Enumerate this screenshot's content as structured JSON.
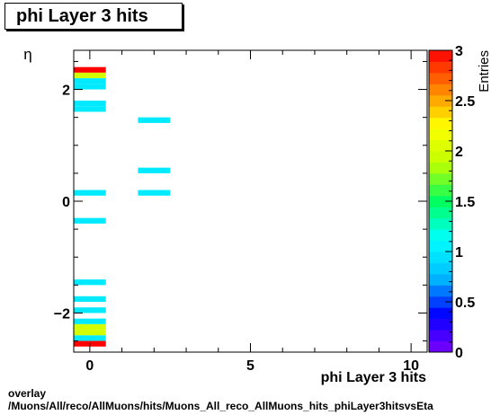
{
  "chart_data": {
    "type": "heatmap",
    "title": "phi Layer 3 hits",
    "xlabel": "phi Layer 3 hits",
    "ylabel": "η",
    "zlabel": "Entries",
    "xlim": [
      -0.5,
      10.5
    ],
    "ylim": [
      -2.7,
      2.7
    ],
    "zlim": [
      0,
      3
    ],
    "x_ticks": [
      "0",
      "5",
      "10"
    ],
    "y_ticks": [
      "−2",
      "0",
      "2"
    ],
    "z_ticks": [
      "0",
      "0.5",
      "1",
      "1.5",
      "2",
      "2.5",
      "3"
    ],
    "bin_width_x": 1,
    "bin_height_y": 0.1,
    "cells": [
      {
        "x": 0,
        "y": 2.35,
        "v": 3
      },
      {
        "x": 0,
        "y": 2.25,
        "v": 2
      },
      {
        "x": 0,
        "y": 2.15,
        "v": 1
      },
      {
        "x": 0,
        "y": 2.05,
        "v": 1
      },
      {
        "x": 0,
        "y": 1.75,
        "v": 1
      },
      {
        "x": 0,
        "y": 1.65,
        "v": 1
      },
      {
        "x": 0,
        "y": 0.15,
        "v": 1
      },
      {
        "x": 0,
        "y": -0.35,
        "v": 1
      },
      {
        "x": 0,
        "y": -1.45,
        "v": 1
      },
      {
        "x": 0,
        "y": -1.75,
        "v": 1
      },
      {
        "x": 0,
        "y": -1.95,
        "v": 1
      },
      {
        "x": 0,
        "y": -2.15,
        "v": 1
      },
      {
        "x": 0,
        "y": -2.25,
        "v": 2
      },
      {
        "x": 0,
        "y": -2.35,
        "v": 2
      },
      {
        "x": 0,
        "y": -2.45,
        "v": 1
      },
      {
        "x": 0,
        "y": -2.55,
        "v": 3
      },
      {
        "x": 2,
        "y": 1.45,
        "v": 1
      },
      {
        "x": 2,
        "y": 0.55,
        "v": 1
      },
      {
        "x": 2,
        "y": 0.15,
        "v": 1
      }
    ]
  },
  "footer": {
    "line1": "overlay",
    "line2": "/Muons/All/reco/AllMuons/hits/Muons_All_reco_AllMuons_hits_phiLayer3hitsvsEta"
  },
  "colors": {
    "palette_stops": [
      "#7f00ff",
      "#0000ff",
      "#00bfff",
      "#00ffff",
      "#00ff60",
      "#bfff00",
      "#ffff00",
      "#ff8000",
      "#ff0000"
    ]
  }
}
